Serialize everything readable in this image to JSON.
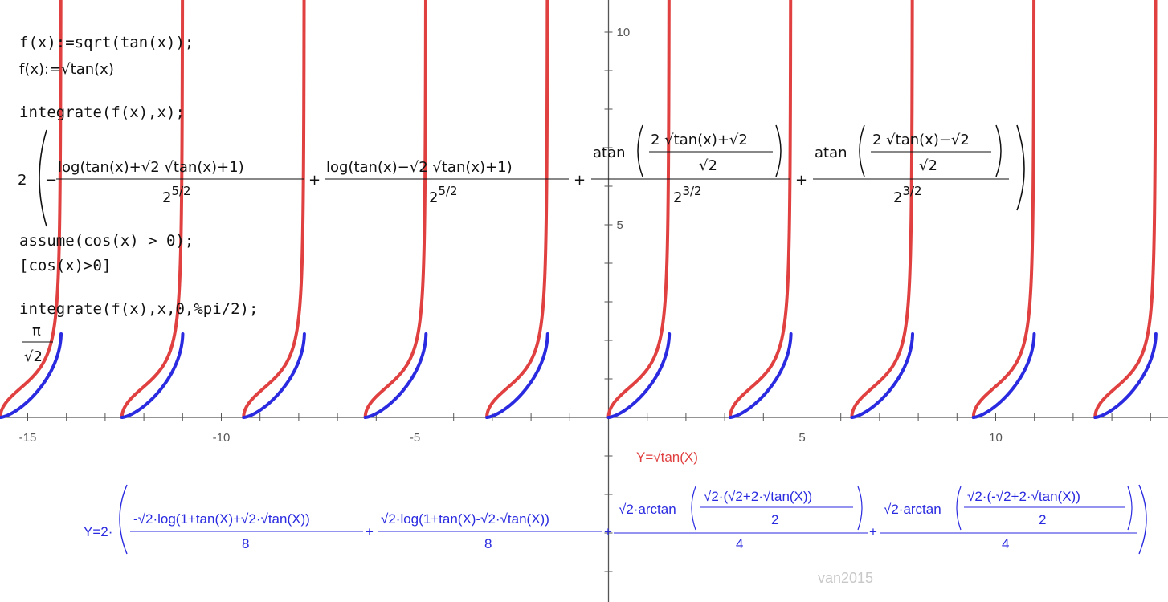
{
  "colors": {
    "red_curve": "#e04040",
    "blue_curve": "#2a2ae0",
    "axis": "#555555",
    "text": "#111111",
    "watermark": "#c8c8c8"
  },
  "console": {
    "line1": "f(x):=sqrt(tan(x));",
    "line2": "f(x):=√tan(x)",
    "line3": "integrate(f(x),x);",
    "result_coeff": "2",
    "term1_num": "log(tan(x)+√2 √tan(x)+1)",
    "term1_den_base": "2",
    "term1_den_exp": "5/2",
    "term2_num": "log(tan(x)−√2 √tan(x)+1)",
    "term2_den_base": "2",
    "term2_den_exp": "5/2",
    "term3_fn": "atan",
    "term3_inner_num": "2 √tan(x)+√2",
    "term3_inner_den": "√2",
    "term3_den_base": "2",
    "term3_den_exp": "3/2",
    "term4_fn": "atan",
    "term4_inner_num": "2 √tan(x)−√2",
    "term4_inner_den": "√2",
    "term4_den_base": "2",
    "term4_den_exp": "3/2",
    "line4": "assume(cos(x) > 0);",
    "line5": "[cos(x)>0]",
    "line6": "integrate(f(x),x,0,%pi/2);",
    "result2_num": "π",
    "result2_den": "√2"
  },
  "red_label": "Y=√tan(X)",
  "blue_label": {
    "prefix": "Y=2·",
    "t1_num": "-√2·log(1+tan(X)+√2·√tan(X))",
    "t1_den": "8",
    "t2_num": "√2·log(1+tan(X)-√2·√tan(X))",
    "t2_den": "8",
    "t3_num_a": "√2·arctan",
    "t3_inner_num": "√2·(√2+2·√tan(X))",
    "t3_inner_den": "2",
    "t3_den": "4",
    "t4_num_a": "√2·arctan",
    "t4_inner_num": "√2·(-√2+2·√tan(X))",
    "t4_inner_den": "2",
    "t4_den": "4",
    "plus": "+"
  },
  "watermark": "van2015",
  "chart_data": {
    "type": "line",
    "title": "",
    "xlabel": "",
    "ylabel": "",
    "xlim": [
      -15.7,
      14.3
    ],
    "ylim": [
      -4.8,
      10.8
    ],
    "x_ticks": [
      -15,
      -10,
      -5,
      5,
      10
    ],
    "y_ticks": [
      5,
      10
    ],
    "grid": false,
    "series": [
      {
        "name": "Y=√tan(X)",
        "function": "sqrt(tan(x))",
        "domain": "kπ ≤ x < kπ+π/2",
        "periods": [
          -5,
          -4,
          -3,
          -2,
          -1,
          0,
          1,
          2,
          3,
          4
        ]
      },
      {
        "name": "Y=2·(...)",
        "function": "antiderivative of sqrt(tan(x))",
        "domain": "kπ ≤ x < kπ+π/2",
        "value_at_pi_over_2": 2.2214,
        "periods": [
          -5,
          -4,
          -3,
          -2,
          -1,
          0,
          1,
          2,
          3,
          4
        ]
      }
    ]
  }
}
